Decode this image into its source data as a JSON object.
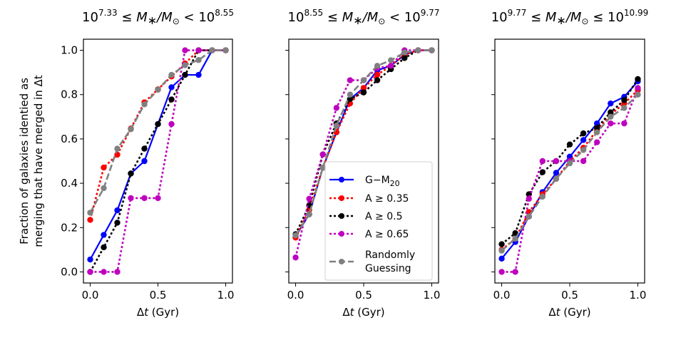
{
  "chart_data": {
    "type": "line",
    "ylabel": "Fraction of galaxies identied as\nmerging that have merged in Δt",
    "ylabel_lines": [
      "Fraction of galaxies identied as",
      "merging that have merged in Δt"
    ],
    "shared_y": true,
    "ylim": [
      -0.05,
      1.05
    ],
    "xlim": [
      -0.05,
      1.05
    ],
    "yticks": [
      0.0,
      0.2,
      0.4,
      0.6,
      0.8,
      1.0
    ],
    "ytick_labels": [
      "0.0",
      "0.2",
      "0.4",
      "0.6",
      "0.8",
      "1.0"
    ],
    "xticks": [
      0.0,
      0.5,
      1.0
    ],
    "xtick_labels": [
      "0.0",
      "0.5",
      "1.0"
    ],
    "x": [
      0.0,
      0.1,
      0.2,
      0.3,
      0.4,
      0.5,
      0.6,
      0.7,
      0.8,
      0.9,
      1.0
    ],
    "legend": {
      "placement": "lower-right of middle panel",
      "entries": [
        {
          "key": "gm20",
          "label_main": "G−M",
          "label_sub": "20",
          "color": "#0000ff",
          "style": "solid"
        },
        {
          "key": "a035",
          "label_main": "A ≥ 0.35",
          "label_sub": "",
          "color": "#ff0000",
          "style": "dotted"
        },
        {
          "key": "a05",
          "label_main": "A ≥ 0.5",
          "label_sub": "",
          "color": "#000000",
          "style": "dotted"
        },
        {
          "key": "a065",
          "label_main": "A ≥ 0.65",
          "label_sub": "",
          "color": "#bf00bf",
          "style": "dotted"
        },
        {
          "key": "random",
          "label_main": "Randomly",
          "label_line2": "Guessing",
          "label_sub": "",
          "color": "#808080",
          "style": "dashed"
        }
      ]
    },
    "panels": [
      {
        "title_parts": {
          "lo_exp": "7.33",
          "op1": "≤",
          "op2": "<",
          "hi_exp": "8.55"
        },
        "title": "10^7.33 ≤ M*/M⊙ < 10^8.55",
        "xlabel": "Δt (Gyr)",
        "series": [
          {
            "key": "gm20",
            "name": "G−M20",
            "values": [
              0.056,
              0.167,
              0.278,
              0.444,
              0.5,
              0.667,
              0.833,
              0.889,
              0.889,
              1.0,
              1.0
            ]
          },
          {
            "key": "a035",
            "name": "A ≥ 0.35",
            "values": [
              0.235,
              0.471,
              0.529,
              0.647,
              0.765,
              0.824,
              0.882,
              0.941,
              1.0,
              1.0,
              1.0
            ]
          },
          {
            "key": "a05",
            "name": "A ≥ 0.5",
            "values": [
              0.0,
              0.111,
              0.222,
              0.444,
              0.556,
              0.667,
              0.778,
              0.889,
              1.0,
              1.0,
              1.0
            ]
          },
          {
            "key": "a065",
            "name": "A ≥ 0.65",
            "values": [
              0.0,
              0.0,
              0.0,
              0.333,
              0.333,
              0.333,
              0.667,
              1.0,
              1.0,
              1.0,
              1.0
            ]
          },
          {
            "key": "random",
            "name": "Randomly Guessing",
            "values": [
              0.267,
              0.378,
              0.556,
              0.644,
              0.756,
              0.822,
              0.889,
              0.933,
              0.956,
              1.0,
              1.0
            ]
          }
        ]
      },
      {
        "title_parts": {
          "lo_exp": "8.55",
          "op1": "≤",
          "op2": "<",
          "hi_exp": "9.77"
        },
        "title": "10^8.55 ≤ M*/M⊙ < 10^9.77",
        "xlabel": "Δt (Gyr)",
        "series": [
          {
            "key": "gm20",
            "name": "G−M20",
            "values": [
              0.16,
              0.26,
              0.47,
              0.63,
              0.78,
              0.83,
              0.91,
              0.93,
              0.98,
              1.0,
              1.0
            ]
          },
          {
            "key": "a035",
            "name": "A ≥ 0.35",
            "values": [
              0.155,
              0.28,
              0.47,
              0.63,
              0.76,
              0.83,
              0.89,
              0.93,
              0.98,
              1.0,
              1.0
            ]
          },
          {
            "key": "a05",
            "name": "A ≥ 0.5",
            "values": [
              0.17,
              0.3,
              0.53,
              0.67,
              0.78,
              0.81,
              0.865,
              0.915,
              0.965,
              1.0,
              1.0
            ]
          },
          {
            "key": "a065",
            "name": "A ≥ 0.65",
            "values": [
              0.065,
              0.33,
              0.53,
              0.74,
              0.865,
              0.865,
              0.92,
              0.93,
              1.0,
              1.0,
              1.0
            ]
          },
          {
            "key": "random",
            "name": "Randomly Guessing",
            "values": [
              0.165,
              0.26,
              0.47,
              0.66,
              0.8,
              0.865,
              0.93,
              0.955,
              0.99,
              1.0,
              1.0
            ]
          }
        ]
      },
      {
        "title_parts": {
          "lo_exp": "9.77",
          "op1": "≤",
          "op2": "≤",
          "hi_exp": "10.99"
        },
        "title": "10^9.77 ≤ M*/M⊙ ≤ 10^10.99",
        "xlabel": "Δt (Gyr)",
        "series": [
          {
            "key": "gm20",
            "name": "G−M20",
            "values": [
              0.06,
              0.135,
              0.25,
              0.36,
              0.447,
              0.52,
              0.595,
              0.67,
              0.76,
              0.79,
              0.86
            ]
          },
          {
            "key": "a035",
            "name": "A ≥ 0.35",
            "values": [
              0.1,
              0.15,
              0.27,
              0.35,
              0.42,
              0.5,
              0.56,
              0.64,
              0.71,
              0.76,
              0.82
            ]
          },
          {
            "key": "a05",
            "name": "A ≥ 0.5",
            "values": [
              0.125,
              0.175,
              0.35,
              0.45,
              0.5,
              0.575,
              0.625,
              0.65,
              0.72,
              0.775,
              0.87
            ]
          },
          {
            "key": "a065",
            "name": "A ≥ 0.65",
            "values": [
              0.0,
              0.0,
              0.33,
              0.5,
              0.5,
              0.5,
              0.5,
              0.585,
              0.67,
              0.67,
              0.83
            ]
          },
          {
            "key": "random",
            "name": "Randomly Guessing",
            "values": [
              0.096,
              0.15,
              0.25,
              0.34,
              0.42,
              0.49,
              0.55,
              0.63,
              0.7,
              0.74,
              0.8
            ]
          }
        ]
      }
    ]
  }
}
